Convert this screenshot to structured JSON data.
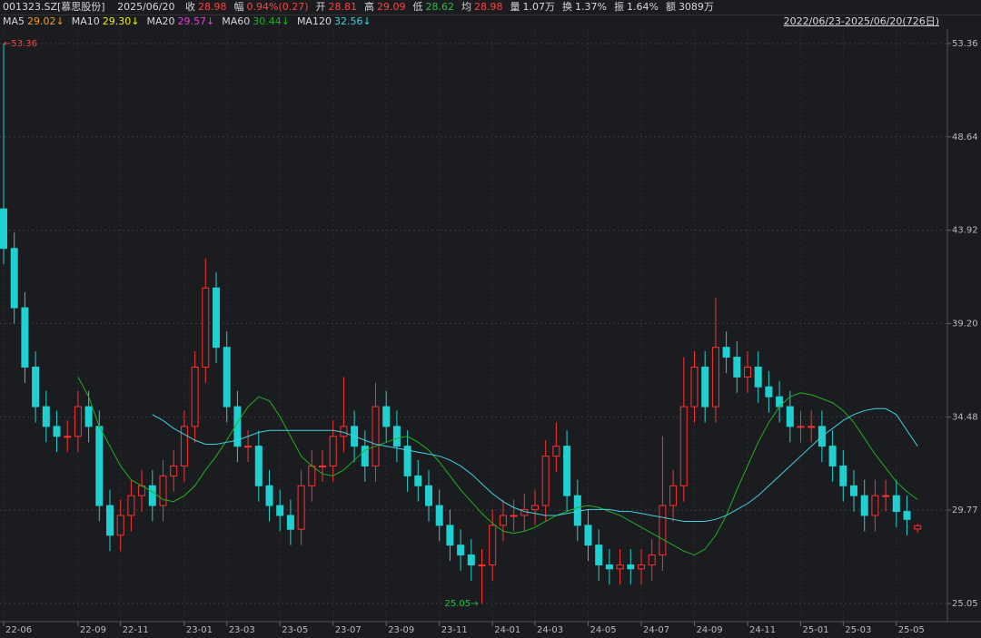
{
  "header": {
    "symbol": "001323.SZ[慕思股份]",
    "date": "2025/06/20",
    "items": [
      {
        "label": "收",
        "value": "28.98",
        "color": "#ff4040"
      },
      {
        "label": "幅",
        "value": "0.94%(0.27)",
        "color": "#ff4040"
      },
      {
        "label": "开",
        "value": "28.81",
        "color": "#ff4040"
      },
      {
        "label": "高",
        "value": "29.09",
        "color": "#ff4040"
      },
      {
        "label": "低",
        "value": "28.62",
        "color": "#20c040"
      },
      {
        "label": "均",
        "value": "28.98",
        "color": "#ff4040"
      },
      {
        "label": "量",
        "value": "1.07万",
        "color": "#d8d8d8"
      },
      {
        "label": "换",
        "value": "1.37%",
        "color": "#d8d8d8"
      },
      {
        "label": "振",
        "value": "1.64%",
        "color": "#d8d8d8"
      },
      {
        "label": "额",
        "value": "3089万",
        "color": "#d8d8d8"
      }
    ],
    "range": "2022/06/23-2025/06/20(726日)"
  },
  "ma": [
    {
      "name": "MA5",
      "value": "29.02↓",
      "color": "#f0a020"
    },
    {
      "name": "MA10",
      "value": "29.30↓",
      "color": "#f0f000"
    },
    {
      "name": "MA20",
      "value": "29.57↓",
      "color": "#e040e0"
    },
    {
      "name": "MA60",
      "value": "30.44↓",
      "color": "#20b020",
      "values": [
        null,
        null,
        null,
        null,
        null,
        null,
        null,
        36.5,
        35.5,
        34,
        33,
        32,
        31.3,
        31,
        30.7,
        30.3,
        30.2,
        30.5,
        31,
        31.8,
        32.5,
        33.3,
        34.2,
        35,
        35.5,
        35.3,
        34.5,
        33.5,
        32.5,
        32,
        31.6,
        31.5,
        31.8,
        32.3,
        32.8,
        33,
        33.2,
        33.4,
        33.5,
        33.2,
        32.8,
        32.2,
        31.5,
        30.8,
        30.2,
        29.6,
        29.1,
        28.7,
        28.6,
        28.7,
        28.9,
        29.2,
        29.5,
        29.7,
        29.9,
        30,
        29.9,
        29.7,
        29.5,
        29.2,
        28.9,
        28.6,
        28.3,
        28,
        27.7,
        27.5,
        27.8,
        28.5,
        29.5,
        30.8,
        32,
        33.2,
        34.2,
        35,
        35.5,
        35.7,
        35.6,
        35.4,
        35.2,
        34.8,
        34.2,
        33.4,
        32.6,
        31.9,
        31.2,
        30.7,
        30.3
      ]
    },
    {
      "name": "MA120",
      "value": "32.56↓",
      "color": "#40d0e0",
      "values": [
        null,
        null,
        null,
        null,
        null,
        null,
        null,
        null,
        null,
        null,
        null,
        null,
        null,
        null,
        34.6,
        34.3,
        33.9,
        33.6,
        33.3,
        33.1,
        33.1,
        33.2,
        33.3,
        33.5,
        33.7,
        33.8,
        33.8,
        33.8,
        33.8,
        33.8,
        33.8,
        33.8,
        33.7,
        33.5,
        33.3,
        33.1,
        33,
        32.9,
        32.8,
        32.7,
        32.6,
        32.5,
        32.3,
        32,
        31.6,
        31.1,
        30.6,
        30.2,
        29.9,
        29.7,
        29.6,
        29.5,
        29.5,
        29.6,
        29.7,
        29.8,
        29.8,
        29.8,
        29.7,
        29.7,
        29.6,
        29.5,
        29.4,
        29.3,
        29.2,
        29.2,
        29.2,
        29.3,
        29.5,
        29.8,
        30.1,
        30.5,
        31,
        31.5,
        32,
        32.5,
        33,
        33.5,
        33.9,
        34.3,
        34.6,
        34.8,
        34.9,
        34.9,
        34.6,
        33.8,
        33
      ]
    }
  ],
  "chart_data": {
    "type": "candlestick",
    "up_color": "#ff3030",
    "down_color": "#20d0d0",
    "open": [
      45,
      43,
      40,
      37,
      35,
      34,
      33.5,
      33.5,
      35,
      34,
      30,
      28.5,
      29.5,
      30.5,
      31,
      30,
      31.5,
      32,
      34,
      37,
      41,
      38,
      35,
      33,
      33,
      31,
      30,
      29.5,
      28.8,
      31,
      32,
      32,
      33.5,
      34,
      33,
      32,
      35,
      34,
      33,
      31.5,
      31,
      30,
      29,
      28,
      27.5,
      27,
      27,
      29,
      29.5,
      29.5,
      29.8,
      30,
      32.5,
      33,
      30.5,
      29,
      28,
      27,
      26.8,
      27,
      26.8,
      27,
      27.5,
      30,
      31,
      35,
      37,
      35,
      38,
      37.5,
      36.5,
      37,
      36,
      35.5,
      35,
      34,
      34,
      34,
      33,
      32,
      31,
      30.5,
      29.5,
      30.5,
      30.5,
      29.7,
      28.81
    ],
    "high": [
      53.36,
      43.8,
      40.8,
      37.8,
      35.8,
      34.8,
      34.3,
      35.8,
      35.8,
      34.8,
      30.8,
      30.3,
      31.3,
      31.8,
      31.8,
      32.3,
      32.8,
      34.8,
      37.8,
      42.5,
      41.8,
      38.8,
      35.8,
      33.8,
      33.8,
      31.8,
      30.8,
      30.3,
      31.8,
      32.8,
      32.8,
      34.3,
      36.5,
      34.8,
      33.8,
      36.2,
      35.8,
      34.8,
      33.8,
      32.3,
      31.8,
      30.8,
      29.8,
      28.8,
      28.3,
      27.8,
      29.8,
      30.3,
      30.3,
      30.6,
      30.8,
      33.3,
      34.2,
      33.8,
      31.3,
      29.8,
      28.8,
      27.8,
      27.8,
      27.8,
      27.8,
      28.3,
      33.5,
      31.8,
      37.5,
      37.8,
      37.8,
      40.5,
      38.8,
      38.3,
      37.8,
      37.8,
      36.8,
      36.3,
      35.8,
      34.8,
      34.8,
      34.8,
      33.8,
      32.8,
      31.8,
      31.3,
      31.3,
      31.3,
      31.3,
      30.5,
      29.09
    ],
    "low": [
      42.2,
      39.2,
      36.2,
      34.2,
      33.2,
      32.7,
      32.7,
      32.7,
      33.2,
      29.2,
      27.7,
      27.7,
      28.7,
      29.7,
      29.2,
      29.2,
      30.7,
      31.2,
      33.2,
      36.2,
      37.2,
      34.2,
      32.2,
      32.2,
      30.2,
      29.2,
      28.7,
      28,
      28,
      30.2,
      31.2,
      31.2,
      32.7,
      32.2,
      31.2,
      31.2,
      33.2,
      32.2,
      30.7,
      30.2,
      29.2,
      28.2,
      27.2,
      26.7,
      26.2,
      25.05,
      26.2,
      28.2,
      28.7,
      28.7,
      29,
      29.2,
      31.7,
      29.7,
      28.2,
      27.2,
      26.2,
      26,
      26,
      26,
      26,
      26.2,
      26.7,
      29.2,
      30.2,
      34.2,
      34.2,
      34.2,
      36.7,
      35.7,
      35.7,
      35.2,
      34.7,
      34.2,
      33.2,
      33.2,
      33.2,
      32.2,
      31.2,
      30.2,
      29.7,
      28.7,
      28.7,
      29.7,
      28.9,
      28.5,
      28.62
    ],
    "close": [
      43,
      40,
      37,
      35,
      34,
      33.5,
      33.5,
      35,
      34,
      30,
      28.5,
      29.5,
      30.5,
      31,
      30,
      31.5,
      32,
      34,
      37,
      41,
      38,
      35,
      33,
      33,
      31,
      30,
      29.5,
      28.8,
      31,
      32,
      32,
      33.5,
      34,
      33,
      32,
      35,
      34,
      33,
      31.5,
      31,
      30,
      29,
      28,
      27.5,
      27,
      27,
      29,
      29.5,
      29.5,
      29.8,
      30,
      32.5,
      33,
      30.5,
      29,
      28,
      27,
      26.8,
      27,
      26.8,
      27,
      27.5,
      30,
      31,
      35,
      37,
      35,
      38,
      37.5,
      36.5,
      37,
      36,
      35.5,
      35,
      34,
      34,
      34,
      33,
      32,
      31,
      30.5,
      29.5,
      30.5,
      30.5,
      29.7,
      29.3,
      28.98
    ],
    "ylim": [
      24.13,
      54.09
    ],
    "yticks": [
      53.36,
      48.64,
      43.92,
      {
        "value": 39.2,
        "label": "39.20"
      },
      34.48,
      29.77,
      25.05
    ],
    "xticks": [
      {
        "value": 0,
        "label": "22-06"
      },
      {
        "value": 7,
        "label": "22-09"
      },
      {
        "value": 11,
        "label": "22-11"
      },
      {
        "value": 17,
        "label": "23-01"
      },
      {
        "value": 21,
        "label": "23-03"
      },
      {
        "value": 26,
        "label": "23-05"
      },
      {
        "value": 31,
        "label": "23-07"
      },
      {
        "value": 36,
        "label": "23-09"
      },
      {
        "value": 41,
        "label": "23-11"
      },
      {
        "value": 46,
        "label": "24-01"
      },
      {
        "value": 50,
        "label": "24-03"
      },
      {
        "value": 55,
        "label": "24-05"
      },
      {
        "value": 60,
        "label": "24-07"
      },
      {
        "value": 65,
        "label": "24-09"
      },
      {
        "value": 70,
        "label": "24-11"
      },
      {
        "value": 75,
        "label": "25-01"
      },
      {
        "value": 79,
        "label": "25-03"
      },
      {
        "value": 84,
        "label": "25-05"
      }
    ],
    "grid": true,
    "annotations": [
      {
        "text": "←53.36",
        "color": "#ff4040",
        "index": 0,
        "value": 53.36,
        "side": "right"
      },
      {
        "text": "25.05→",
        "color": "#20c040",
        "index": 45,
        "value": 25.05,
        "side": "left"
      }
    ]
  }
}
